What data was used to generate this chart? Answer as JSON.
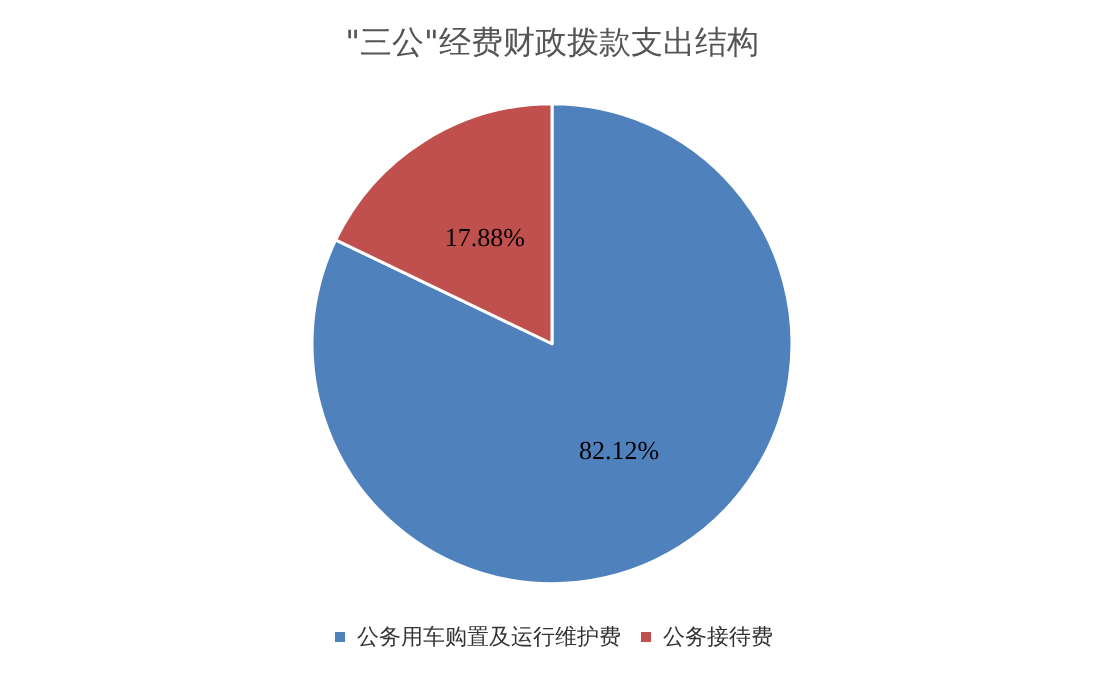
{
  "chart_data": {
    "type": "pie",
    "title": "\"三公\"经费财政拨款支出结构",
    "categories": [
      "公务用车购置及运行维护费",
      "公务接待费"
    ],
    "values": [
      82.12,
      17.88
    ],
    "colors": [
      "#4f81bd",
      "#c0504d"
    ],
    "value_labels": [
      "82.12%",
      "17.88%"
    ],
    "legend": "bottom"
  }
}
